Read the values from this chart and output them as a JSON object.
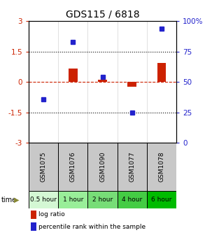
{
  "title": "GDS115 / 6818",
  "samples": [
    "GSM1075",
    "GSM1076",
    "GSM1090",
    "GSM1077",
    "GSM1078"
  ],
  "time_labels": [
    "0.5 hour",
    "1 hour",
    "2 hour",
    "4 hour",
    "6 hour"
  ],
  "time_colors": [
    "#d4f7d4",
    "#99ee99",
    "#77dd77",
    "#44cc44",
    "#00bb00"
  ],
  "log_ratio": [
    0.0,
    0.65,
    0.12,
    -0.22,
    0.95
  ],
  "percentile_rank": [
    36,
    83,
    54,
    25,
    94
  ],
  "ylim_left": [
    -3,
    3
  ],
  "ylim_right": [
    0,
    100
  ],
  "yticks_left": [
    -3,
    -1.5,
    0,
    1.5,
    3
  ],
  "ytick_labels_left": [
    "-3",
    "-1.5",
    "0",
    "1.5",
    "3"
  ],
  "yticks_right": [
    0,
    25,
    50,
    75,
    100
  ],
  "ytick_labels_right": [
    "0",
    "25",
    "50",
    "75",
    "100%"
  ],
  "hlines": [
    1.5,
    -1.5
  ],
  "bar_color": "#cc2200",
  "dot_color": "#2222cc",
  "bar_width": 0.3,
  "dot_size": 40,
  "legend_log_ratio": "log ratio",
  "legend_percentile": "percentile rank within the sample",
  "time_label": "time",
  "title_fontsize": 10,
  "tick_fontsize": 7.5,
  "sample_fontsize": 6.5,
  "time_fontsize": 6.5
}
